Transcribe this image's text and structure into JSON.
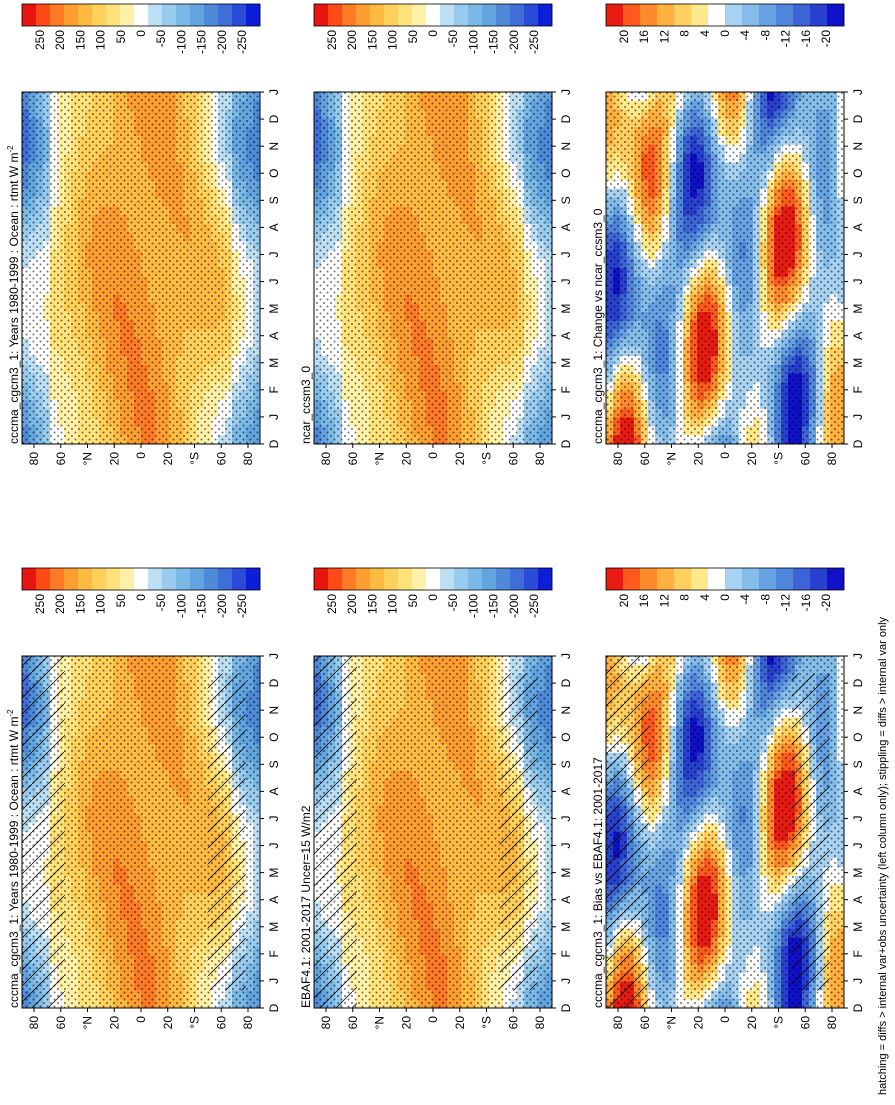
{
  "figure": {
    "footnote": "hatching = diffs > internal var+obs uncertainty (left column only); stippling = diffs > internal var only"
  },
  "shared": {
    "lat_ticks": [
      "80",
      "60",
      "°N",
      "20",
      "0",
      "20",
      "°S",
      "60",
      "80"
    ],
    "month_ticks": [
      "D",
      "J",
      "F",
      "M",
      "A",
      "M",
      "J",
      "J",
      "A",
      "S",
      "O",
      "N",
      "D",
      "J"
    ]
  },
  "colors": {
    "field_scale": [
      "#0d1fd6",
      "#2a4bd8",
      "#3f6ed8",
      "#4f8ad8",
      "#62a4e0",
      "#7ab8e6",
      "#98cbee",
      "#bcdff3",
      "#ffffff",
      "#fff2a8",
      "#ffe27a",
      "#ffd15a",
      "#ffba42",
      "#ff9e30",
      "#ff7a24",
      "#ff4a18",
      "#e8140f"
    ],
    "diff_scale": [
      "#1010c8",
      "#2840d0",
      "#3c64d6",
      "#4f86dc",
      "#66a2e2",
      "#84bcea",
      "#a8d2f1",
      "#ffffff",
      "#ffe98a",
      "#ffd060",
      "#ffb03e",
      "#ff8a2c",
      "#ff5a1e",
      "#e81a12"
    ]
  },
  "chart_data": [
    {
      "type": "heatmap",
      "panel": "top-left",
      "title": "cccma_cgcm3_1: Years 1980-1999 : Ocean : rtmt W m",
      "title_sup": "-2",
      "colorbar_labels": [
        "250",
        "200",
        "150",
        "100",
        "50",
        "0",
        "-50",
        "-100",
        "-150",
        "-200",
        "-250"
      ],
      "zlim": [
        -275,
        275
      ],
      "hatching": true,
      "stippling": true
    },
    {
      "type": "heatmap",
      "panel": "top-right",
      "title": "cccma_cgcm3_1: Years 1980-1999 : Ocean : rtmt W m",
      "title_sup": "-2",
      "colorbar_labels": [
        "250",
        "200",
        "150",
        "100",
        "50",
        "0",
        "-50",
        "-100",
        "-150",
        "-200",
        "-250"
      ],
      "zlim": [
        -275,
        275
      ],
      "hatching": false,
      "stippling": true
    },
    {
      "type": "heatmap",
      "panel": "middle-left",
      "title": "EBAF4.1: 2001-2017 Uncer=15 W/m2",
      "title_sup": "",
      "colorbar_labels": [
        "250",
        "200",
        "150",
        "100",
        "50",
        "0",
        "-50",
        "-100",
        "-150",
        "-200",
        "-250"
      ],
      "zlim": [
        -275,
        275
      ],
      "hatching": true,
      "stippling": true
    },
    {
      "type": "heatmap",
      "panel": "middle-right",
      "title": "ncar_ccsm3_0",
      "title_sup": "",
      "colorbar_labels": [
        "250",
        "200",
        "150",
        "100",
        "50",
        "0",
        "-50",
        "-100",
        "-150",
        "-200",
        "-250"
      ],
      "zlim": [
        -275,
        275
      ],
      "hatching": false,
      "stippling": true
    },
    {
      "type": "heatmap",
      "panel": "bottom-left",
      "title": "cccma_cgcm3_1: Bias vs EBAF4.1: 2001-2017",
      "title_sup": "",
      "colorbar_labels": [
        "20",
        "16",
        "12",
        "8",
        "4",
        "0",
        "-4",
        "-8",
        "-12",
        "-16",
        "-20"
      ],
      "zlim": [
        -22,
        22
      ],
      "hatching": true,
      "stippling": true
    },
    {
      "type": "heatmap",
      "panel": "bottom-right",
      "title": "cccma_cgcm3_1: Change vs ncar_ccsm3_0",
      "title_sup": "",
      "colorbar_labels": [
        "20",
        "16",
        "12",
        "8",
        "4",
        "0",
        "-4",
        "-8",
        "-12",
        "-16",
        "-20"
      ],
      "zlim": [
        -22,
        22
      ],
      "hatching": false,
      "stippling": true
    }
  ]
}
